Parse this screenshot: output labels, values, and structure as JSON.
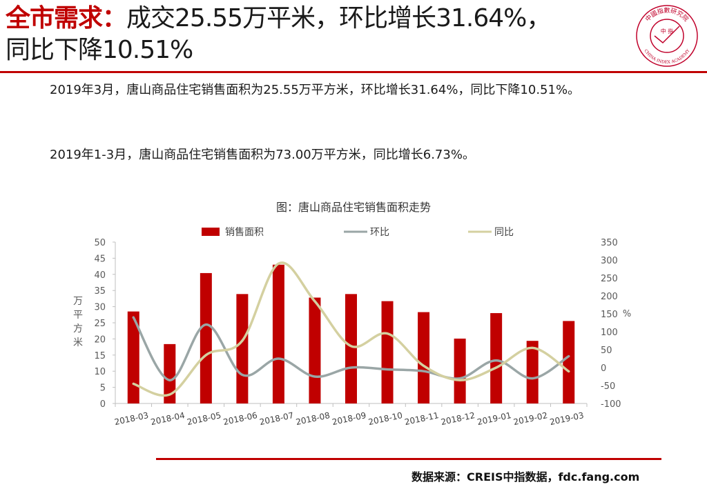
{
  "header": {
    "title_accent": "全市需求：",
    "title_line1_rest": "成交25.55万平米，环比增长31.64%，",
    "title_line2": "同比下降10.51%"
  },
  "logo": {
    "name": "China Index Academy",
    "top_text": "中國指數研究院",
    "center_text": "中 指",
    "bottom_text": "CHINA INDEX ACADEMY",
    "color": "#c0002a"
  },
  "body": {
    "paragraph1": "2019年3月，唐山商品住宅销售面积为25.55万平方米，环比增长31.64%，同比下降10.51%。",
    "paragraph2": "2019年1-3月，唐山商品住宅销售面积为73.00万平方米，同比增长6.73%。"
  },
  "chart_data": {
    "type": "bar",
    "title": "图：唐山商品住宅销售面积走势",
    "categories": [
      "2018-03",
      "2018-04",
      "2018-05",
      "2018-06",
      "2018-07",
      "2018-08",
      "2018-09",
      "2018-10",
      "2018-11",
      "2018-12",
      "2019-01",
      "2019-02",
      "2019-03"
    ],
    "series": [
      {
        "name": "销售面积",
        "type": "bar",
        "axis": "left",
        "color": "#c00000",
        "values": [
          28.5,
          18.4,
          40.4,
          33.9,
          43.0,
          32.8,
          33.9,
          31.7,
          28.3,
          20.1,
          28.0,
          19.4,
          25.55
        ]
      },
      {
        "name": "环比",
        "type": "line",
        "axis": "right",
        "color": "#9aa6a6",
        "values": [
          140,
          -35,
          120,
          -20,
          25,
          -25,
          0,
          -5,
          -10,
          -30,
          20,
          -30,
          31.64
        ]
      },
      {
        "name": "同比",
        "type": "line",
        "axis": "right",
        "color": "#d4d0a0",
        "values": [
          -45,
          -75,
          35,
          75,
          290,
          185,
          60,
          95,
          5,
          -35,
          0,
          55,
          -10.51
        ]
      }
    ],
    "ylabel": "万平方米",
    "y2label": "%",
    "ylim": [
      0,
      50
    ],
    "y2lim": [
      -100,
      350
    ],
    "yticks": [
      "0",
      "5",
      "10",
      "15",
      "20",
      "25",
      "30",
      "35",
      "40",
      "45",
      "50"
    ],
    "y2ticks": [
      "-100",
      "-50",
      "0",
      "50",
      "100",
      "150",
      "200",
      "250",
      "300",
      "350"
    ],
    "legend_position": "top",
    "grid": false
  },
  "footer": {
    "source": "数据来源：CREIS中指数据，fdc.fang.com"
  }
}
